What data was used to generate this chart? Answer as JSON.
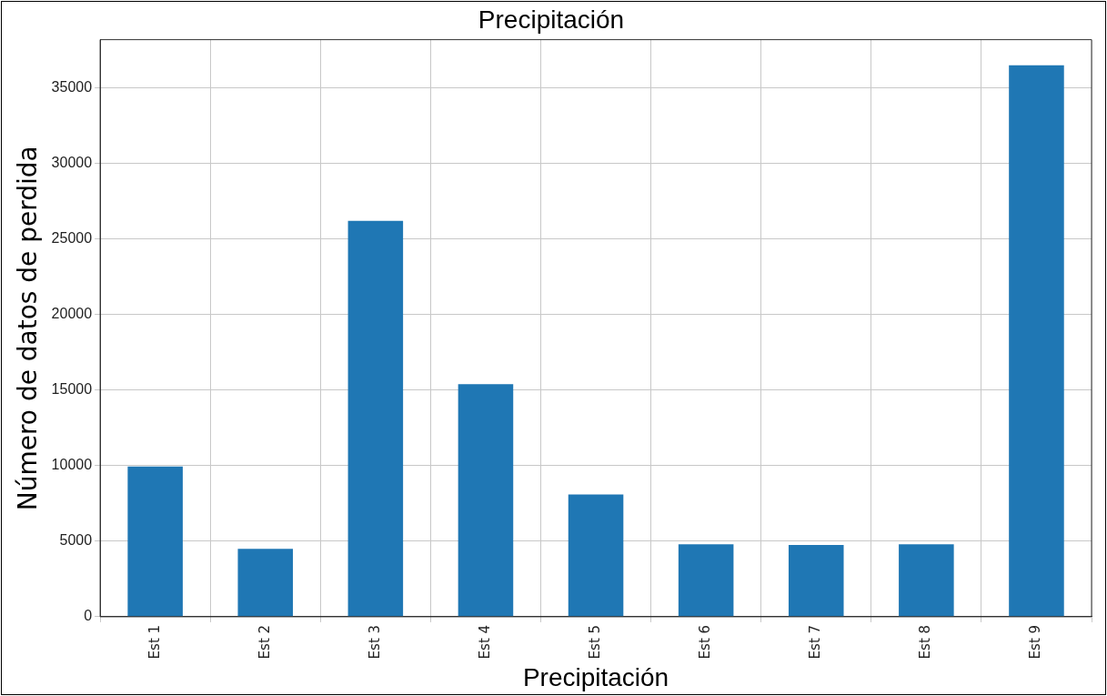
{
  "chart_data": {
    "type": "bar",
    "title": "Precipitación",
    "xlabel": "Precipitación",
    "ylabel": "Número de datos de perdida",
    "categories": [
      "Est 1",
      "Est 2",
      "Est 3",
      "Est 4",
      "Est 5",
      "Est 6",
      "Est 7",
      "Est 8",
      "Est 9"
    ],
    "values": [
      9950,
      4500,
      26200,
      15400,
      8100,
      4800,
      4750,
      4800,
      36500
    ],
    "color": "#1f77b4",
    "ylim": [
      0,
      38200
    ],
    "yticks": [
      0,
      5000,
      10000,
      15000,
      20000,
      25000,
      30000,
      35000
    ],
    "grid": true,
    "legend": false
  }
}
